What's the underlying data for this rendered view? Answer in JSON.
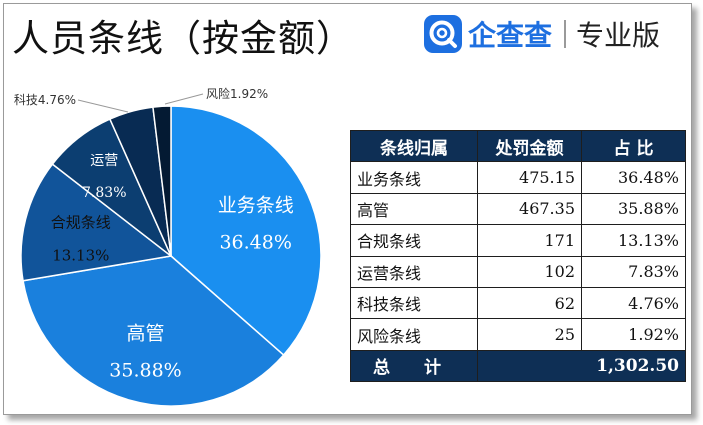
{
  "title": "人员条线（按金额）",
  "brand": {
    "name": "企查查",
    "tag": "专业版"
  },
  "colors": {
    "title_text": "#111111",
    "brand_blue": "#1d6fe0",
    "table_header_bg": "#0e2f55",
    "table_header_text": "#ffffff"
  },
  "chart_data": {
    "type": "pie",
    "title": "人员条线（按金额）",
    "start_angle_deg": 0,
    "direction": "clockwise",
    "slices": [
      {
        "label": "业务条线",
        "value": 475.15,
        "percent_label": "36.48%",
        "color": "#1a8ff0",
        "label_color": "#ffffff",
        "label_mode": "inside"
      },
      {
        "label": "高管",
        "value": 467.35,
        "percent_label": "35.88%",
        "color": "#1a80dd",
        "label_color": "#ffffff",
        "label_mode": "inside"
      },
      {
        "label": "合规条线",
        "value": 171,
        "percent_label": "13.13%",
        "color": "#11549a",
        "label_color": "#111111",
        "label_mode": "inside"
      },
      {
        "label": "运营",
        "value": 102,
        "percent_label": "7.83%",
        "color": "#0c3e71",
        "label_color": "#ffffff",
        "label_mode": "inside"
      },
      {
        "label": "科技",
        "value": 62,
        "percent_label": "4.76%",
        "color": "#082b53",
        "label_color": "#333333",
        "label_mode": "outside"
      },
      {
        "label": "风险",
        "value": 25,
        "percent_label": "1.92%",
        "color": "#041a33",
        "label_color": "#333333",
        "label_mode": "outside"
      }
    ]
  },
  "table": {
    "headers": [
      "条线归属",
      "处罚金额",
      "占 比"
    ],
    "rows": [
      {
        "name": "业务条线",
        "amount": "475.15",
        "share": "36.48%"
      },
      {
        "name": "高管",
        "amount": "467.35",
        "share": "35.88%"
      },
      {
        "name": "合规条线",
        "amount": "171",
        "share": "13.13%"
      },
      {
        "name": "运营条线",
        "amount": "102",
        "share": "7.83%"
      },
      {
        "name": "科技条线",
        "amount": "62",
        "share": "4.76%"
      },
      {
        "name": "风险条线",
        "amount": "25",
        "share": "1.92%"
      }
    ],
    "total": {
      "label": "总 计",
      "value": "1,302.50"
    }
  }
}
